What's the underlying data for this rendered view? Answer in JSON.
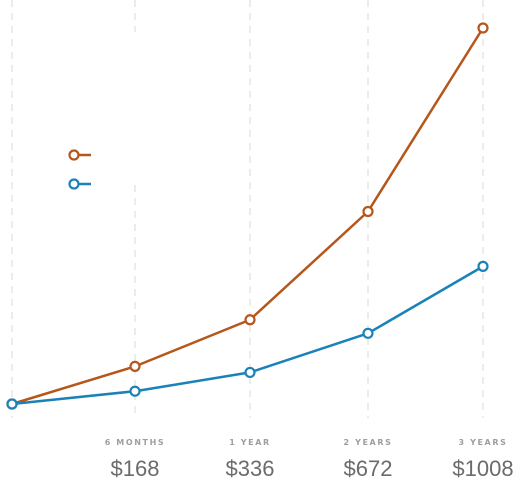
{
  "chart_data": {
    "type": "line",
    "title": "",
    "xlabel": "",
    "ylabel": "",
    "grid": "vertical dashed",
    "legend": "left, unlabeled",
    "x": [
      0,
      6,
      12,
      24,
      36
    ],
    "x_units": "months",
    "tick_labels": [
      {
        "period": "6 MONTHS",
        "cost": "$168"
      },
      {
        "period": "1 YEAR",
        "cost": "$336"
      },
      {
        "period": "2 YEARS",
        "cost": "$672"
      },
      {
        "period": "3 YEARS",
        "cost": "$1008"
      }
    ],
    "ylim": [
      0,
      1000
    ],
    "series": [
      {
        "color": "#b5561b",
        "values": [
          0,
          100,
          224,
          512,
          1000
        ]
      },
      {
        "color": "#1b82b8",
        "values": [
          0,
          34,
          84,
          188,
          366
        ]
      }
    ]
  }
}
